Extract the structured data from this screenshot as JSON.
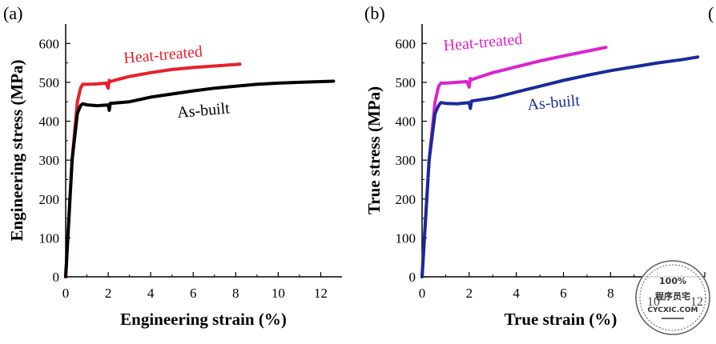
{
  "chart_data": [
    {
      "type": "line",
      "panel_label": "(a)",
      "xlabel": "Engineering strain (%)",
      "ylabel": "Engineering stress (MPa)",
      "xlim": [
        0,
        13
      ],
      "ylim": [
        0,
        650
      ],
      "xticks": [
        "0",
        "2",
        "4",
        "6",
        "8",
        "10",
        "12"
      ],
      "yticks": [
        "0",
        "100",
        "200",
        "300",
        "400",
        "500",
        "600"
      ],
      "grid": false,
      "series": [
        {
          "name": "Heat-treated",
          "color": "#e8202a",
          "x": [
            0,
            0.3,
            0.55,
            0.7,
            0.8,
            1.0,
            1.5,
            1.9,
            2.0,
            2.05,
            2.1,
            2.5,
            3,
            4,
            5,
            6,
            7,
            8,
            8.2
          ],
          "y": [
            0,
            300,
            450,
            485,
            495,
            495,
            496,
            498,
            485,
            505,
            502,
            508,
            515,
            525,
            533,
            538,
            542,
            546,
            547
          ]
        },
        {
          "name": "As-built",
          "color": "#000000",
          "x": [
            0,
            0.3,
            0.55,
            0.7,
            0.8,
            1.0,
            1.5,
            2.0,
            2.05,
            2.1,
            3,
            4,
            5,
            6,
            7,
            8,
            9,
            10,
            11,
            12,
            12.6
          ],
          "y": [
            0,
            300,
            420,
            440,
            445,
            442,
            440,
            442,
            428,
            446,
            450,
            462,
            470,
            478,
            485,
            490,
            495,
            498,
            500,
            502,
            503
          ]
        }
      ],
      "annotations": [
        {
          "text": "Heat-treated",
          "color": "#e8202a",
          "x": 4.6,
          "y": 558
        },
        {
          "text": "As-built",
          "color": "#000000",
          "x": 6.5,
          "y": 415
        }
      ]
    },
    {
      "type": "line",
      "panel_label": "(b)",
      "xlabel": "True strain (%)",
      "ylabel": "True stress (MPa)",
      "xlim": [
        0,
        12
      ],
      "ylim": [
        0,
        650
      ],
      "xticks": [
        "0",
        "2",
        "4",
        "6",
        "8",
        "10",
        "12"
      ],
      "yticks": [
        "0",
        "100",
        "200",
        "300",
        "400",
        "500",
        "600"
      ],
      "grid": false,
      "series": [
        {
          "name": "Heat-treated",
          "color": "#dd22cc",
          "x": [
            0,
            0.3,
            0.55,
            0.7,
            0.8,
            1.0,
            1.5,
            1.9,
            2.0,
            2.05,
            2.1,
            2.5,
            3,
            4,
            5,
            6,
            7,
            7.8
          ],
          "y": [
            0,
            300,
            450,
            490,
            498,
            498,
            500,
            502,
            488,
            510,
            507,
            515,
            525,
            540,
            555,
            568,
            580,
            590
          ]
        },
        {
          "name": "As-built",
          "color": "#1a2a9a",
          "x": [
            0,
            0.3,
            0.55,
            0.7,
            0.8,
            1.0,
            1.5,
            2.0,
            2.05,
            2.1,
            3,
            4,
            5,
            6,
            7,
            8,
            9,
            10,
            11,
            11.7
          ],
          "y": [
            0,
            300,
            420,
            440,
            448,
            446,
            445,
            448,
            433,
            452,
            460,
            475,
            490,
            505,
            518,
            530,
            540,
            550,
            558,
            565
          ]
        }
      ],
      "annotations": [
        {
          "text": "Heat-treated",
          "color": "#dd22cc",
          "x": 2.6,
          "y": 590
        },
        {
          "text": "As-built",
          "color": "#1a2a9a",
          "x": 5.6,
          "y": 435
        }
      ]
    }
  ],
  "partial_panel_label": "(",
  "watermark": {
    "top_text": "100%",
    "middle_text": "程序员宅",
    "bottom_text": "CYCXIC.COM",
    "overlapped_tick": "10",
    "overlapped_tick_2": "12"
  }
}
